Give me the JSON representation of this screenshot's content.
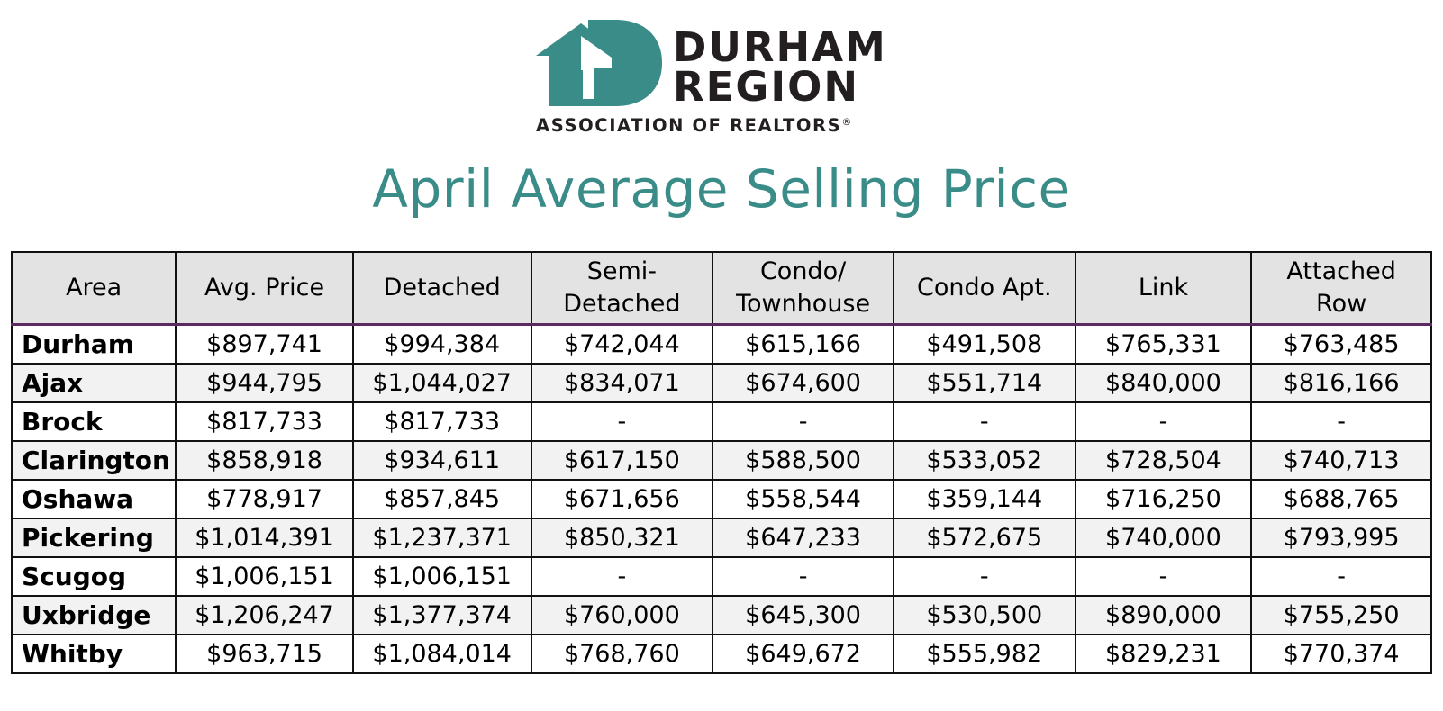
{
  "logo": {
    "line1": "DURHAM",
    "line2": "REGION",
    "tagline": "ASSOCIATION OF REALTORS",
    "registered": "®",
    "colors": {
      "mark": "#3a8c89",
      "text": "#231f20"
    }
  },
  "title": "April Average Selling Price",
  "colors": {
    "title": "#3a8c89",
    "header_bg": "#e3e3e3",
    "stripe_bg": "#f2f2f2"
  },
  "table": {
    "headers": [
      {
        "line1": "Area",
        "line2": ""
      },
      {
        "line1": "Avg. Price",
        "line2": ""
      },
      {
        "line1": "Detached",
        "line2": ""
      },
      {
        "line1": "Semi-",
        "line2": "Detached"
      },
      {
        "line1": "Condo/",
        "line2": "Townhouse"
      },
      {
        "line1": "Condo Apt.",
        "line2": ""
      },
      {
        "line1": "Link",
        "line2": ""
      },
      {
        "line1": "Attached",
        "line2": "Row"
      }
    ],
    "rows": [
      [
        "Durham",
        "$897,741",
        "$994,384",
        "$742,044",
        "$615,166",
        "$491,508",
        "$765,331",
        "$763,485"
      ],
      [
        "Ajax",
        "$944,795",
        "$1,044,027",
        "$834,071",
        "$674,600",
        "$551,714",
        "$840,000",
        "$816,166"
      ],
      [
        "Brock",
        "$817,733",
        "$817,733",
        "-",
        "-",
        "-",
        "-",
        "-"
      ],
      [
        "Clarington",
        "$858,918",
        "$934,611",
        "$617,150",
        "$588,500",
        "$533,052",
        "$728,504",
        "$740,713"
      ],
      [
        "Oshawa",
        "$778,917",
        "$857,845",
        "$671,656",
        "$558,544",
        "$359,144",
        "$716,250",
        "$688,765"
      ],
      [
        "Pickering",
        "$1,014,391",
        "$1,237,371",
        "$850,321",
        "$647,233",
        "$572,675",
        "$740,000",
        "$793,995"
      ],
      [
        "Scugog",
        "$1,006,151",
        "$1,006,151",
        "-",
        "-",
        "-",
        "-",
        "-"
      ],
      [
        "Uxbridge",
        "$1,206,247",
        "$1,377,374",
        "$760,000",
        "$645,300",
        "$530,500",
        "$890,000",
        "$755,250"
      ],
      [
        "Whitby",
        "$963,715",
        "$1,084,014",
        "$768,760",
        "$649,672",
        "$555,982",
        "$829,231",
        "$770,374"
      ]
    ]
  }
}
